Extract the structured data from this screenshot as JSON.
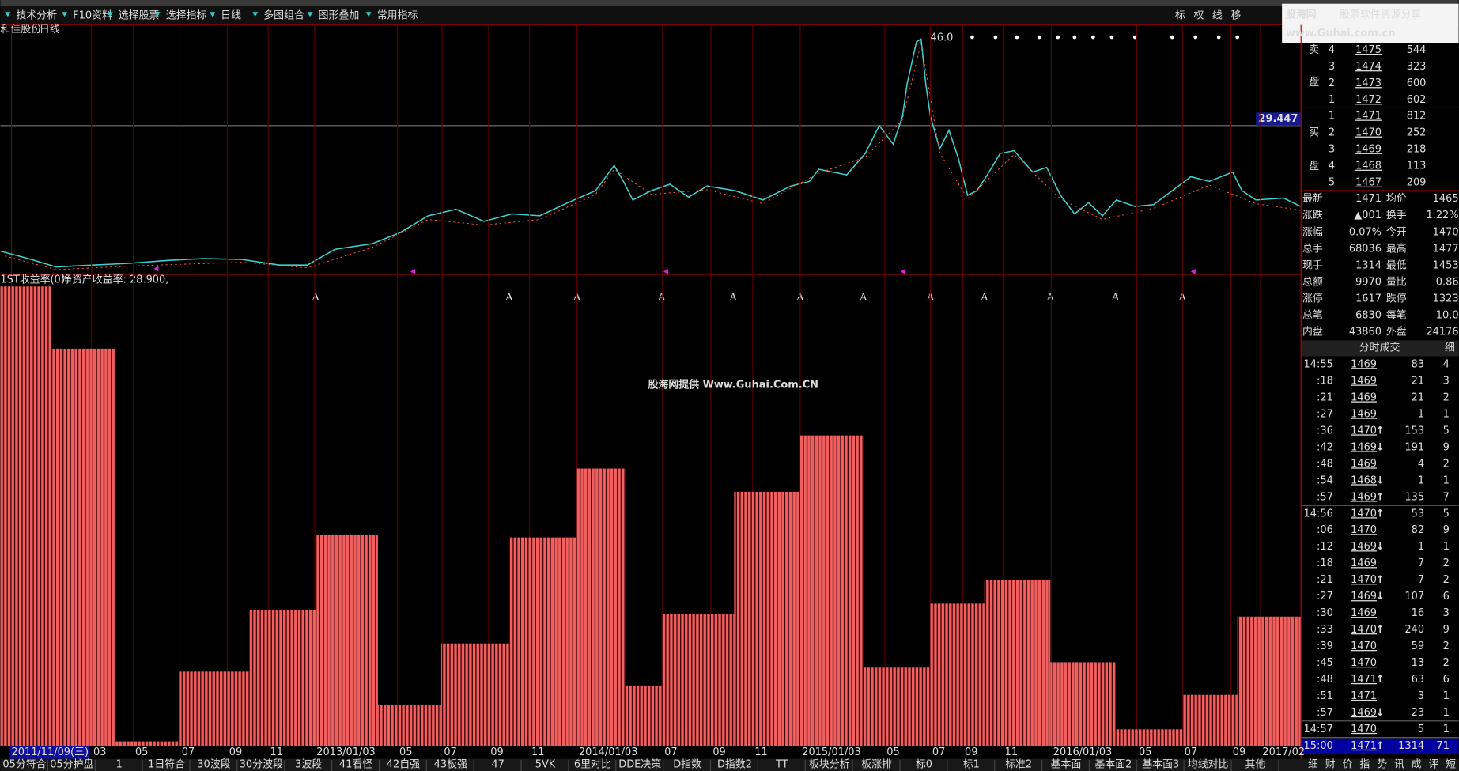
{
  "toolbar": {
    "menus": [
      "技术分析",
      "F10资料",
      "选择股票",
      "选择指标",
      "日线",
      "多图组合",
      "图形叠加",
      "常用指标"
    ],
    "right_buttons": [
      "标",
      "权",
      "线",
      "移"
    ]
  },
  "logo": {
    "name": "股海网",
    "slogan": "股票软件资源分享",
    "url": "www.Guhai.com.cn"
  },
  "chart": {
    "stock": "和佳股份",
    "period": "日线",
    "peak_label": "46.0",
    "cursor_price": "29.447",
    "indicator_name": "1ST收益率(0)",
    "indicator_value": "净资产收益率: 28.900,",
    "markers": [
      "A",
      "A",
      "A",
      "A",
      "A",
      "A",
      "A",
      "A",
      "A",
      "A",
      "A",
      "A"
    ],
    "watermark": "股海网提供 Www.Guhai.Com.CN",
    "roe_bars": [
      102.7,
      88.8,
      1.0,
      16.6,
      30.4,
      47.2,
      9.1,
      22.9,
      46.6,
      62.0,
      13.5,
      29.5,
      56.8,
      69.4,
      17.5,
      31.8,
      37.0,
      18.7,
      3.7,
      11.4,
      28.9
    ],
    "dates": [
      "2011/11/09(三)",
      "03",
      "05",
      "07",
      "09",
      "11",
      "2013/01/03",
      "05",
      "07",
      "09",
      "11",
      "2014/01/03",
      "07",
      "09",
      "11",
      "2015/01/03",
      "05",
      "07",
      "09",
      "11",
      "2016/01/03",
      "05",
      "07",
      "09",
      "2017/02"
    ]
  },
  "tabs": [
    "05分符合",
    "05分护盘",
    "1",
    "1日符合",
    "30波段",
    "30分波段",
    "3波段",
    "41看怪",
    "42自强",
    "43板强",
    "47",
    "5VK",
    "6里对比",
    "DDE决策",
    "D指数",
    "D指数2",
    "TT",
    "板块分析",
    "板涨排",
    "标0",
    "标1",
    "标准2",
    "基本面",
    "基本面2",
    "基本面3",
    "均线对比",
    "其他"
  ],
  "quote": {
    "sell_label": [
      "卖",
      "盘"
    ],
    "buy_label": [
      "买",
      "盘"
    ],
    "sell": [
      {
        "level": 4,
        "price": 1475,
        "vol": 544
      },
      {
        "level": 3,
        "price": 1474,
        "vol": 323
      },
      {
        "level": 2,
        "price": 1473,
        "vol": 600
      },
      {
        "level": 1,
        "price": 1472,
        "vol": 602
      }
    ],
    "buy": [
      {
        "level": 1,
        "price": 1471,
        "vol": 812
      },
      {
        "level": 2,
        "price": 1470,
        "vol": 252
      },
      {
        "level": 3,
        "price": 1469,
        "vol": 218
      },
      {
        "level": 4,
        "price": 1468,
        "vol": 113
      },
      {
        "level": 5,
        "price": 1467,
        "vol": 209
      }
    ],
    "stats": [
      [
        "最新",
        1471,
        "均价",
        1465
      ],
      [
        "涨跌",
        "▲001",
        "换手",
        "1.22%"
      ],
      [
        "涨幅",
        "0.07%",
        "今开",
        1470
      ],
      [
        "总手",
        68036,
        "最高",
        1477
      ],
      [
        "现手",
        1314,
        "最低",
        1453
      ],
      [
        "总额",
        9970,
        "量比",
        0.86
      ],
      [
        "涨停",
        1617,
        "跌停",
        1323
      ],
      [
        "总笔",
        6830,
        "每笔",
        "10.0"
      ],
      [
        "内盘",
        43860,
        "外盘",
        24176
      ]
    ],
    "trades_title": "分时成交",
    "trades_toggle": "细",
    "trades": [
      {
        "time": "14:55",
        "price": 1469,
        "vol": 83,
        "count": 4
      },
      {
        "time": ":18",
        "price": 1469,
        "vol": 21,
        "count": 3
      },
      {
        "time": ":21",
        "price": 1469,
        "vol": 21,
        "count": 2
      },
      {
        "time": ":27",
        "price": 1469,
        "vol": 1,
        "count": 1
      },
      {
        "time": ":36",
        "price": 1470,
        "arrow": "↑",
        "vol": 153,
        "count": 5
      },
      {
        "time": ":42",
        "price": 1469,
        "arrow": "↓",
        "vol": 191,
        "count": 9
      },
      {
        "time": ":48",
        "price": 1469,
        "vol": 4,
        "count": 2
      },
      {
        "time": ":54",
        "price": 1468,
        "arrow": "↓",
        "vol": 1,
        "count": 1
      },
      {
        "time": ":57",
        "price": 1469,
        "arrow": "↑",
        "vol": 135,
        "count": 7
      },
      {
        "time": "14:56",
        "price": 1470,
        "arrow": "↑",
        "vol": 53,
        "count": 5
      },
      {
        "time": ":06",
        "price": 1470,
        "vol": 82,
        "count": 9
      },
      {
        "time": ":12",
        "price": 1469,
        "arrow": "↓",
        "vol": 1,
        "count": 1
      },
      {
        "time": ":18",
        "price": 1469,
        "vol": 7,
        "count": 2
      },
      {
        "time": ":21",
        "price": 1470,
        "arrow": "↑",
        "vol": 7,
        "count": 2
      },
      {
        "time": ":27",
        "price": 1469,
        "arrow": "↓",
        "vol": 107,
        "count": 6
      },
      {
        "time": ":30",
        "price": 1469,
        "vol": 16,
        "count": 3
      },
      {
        "time": ":33",
        "price": 1470,
        "arrow": "↑",
        "vol": 240,
        "count": 9
      },
      {
        "time": ":39",
        "price": 1470,
        "vol": 59,
        "count": 2
      },
      {
        "time": ":45",
        "price": 1470,
        "vol": 13,
        "count": 2
      },
      {
        "time": ":48",
        "price": 1471,
        "arrow": "↑",
        "vol": 63,
        "count": 6
      },
      {
        "time": ":51",
        "price": 1471,
        "vol": 3,
        "count": 1
      },
      {
        "time": ":57",
        "price": 1469,
        "arrow": "↓",
        "vol": 23,
        "count": 1
      },
      {
        "time": "14:57",
        "price": 1470,
        "vol": 5,
        "count": 1
      },
      {
        "time": "15:00",
        "price": 1471,
        "arrow": "↑",
        "vol": 1314,
        "count": 71
      }
    ],
    "side_tabs": [
      "细",
      "财",
      "价",
      "指",
      "势",
      "讯",
      "成",
      "评",
      "短"
    ]
  }
}
